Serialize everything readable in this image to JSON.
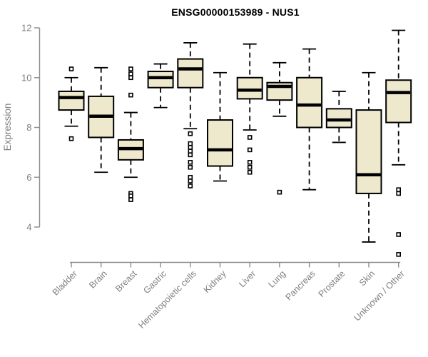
{
  "chart_data": {
    "type": "boxplot",
    "title": "ENSG00000153989 - NUS1",
    "xlabel": "",
    "ylabel": "Expression",
    "ylim": [
      4,
      12
    ],
    "yticks": [
      4,
      6,
      8,
      10,
      12
    ],
    "grid": false,
    "legend": "none",
    "categories": [
      "Bladder",
      "Brain",
      "Breast",
      "Gastric",
      "Hematopoietic cells",
      "Kidney",
      "Liver",
      "Lung",
      "Pancreas",
      "Prostate",
      "Skin",
      "Unknown / Other"
    ],
    "boxes": [
      {
        "category": "Bladder",
        "whisker_low": 8.05,
        "q1": 8.7,
        "median": 9.2,
        "q3": 9.45,
        "whisker_high": 10.0,
        "outliers": [
          10.35,
          7.55
        ]
      },
      {
        "category": "Brain",
        "whisker_low": 6.2,
        "q1": 7.6,
        "median": 8.45,
        "q3": 9.25,
        "whisker_high": 10.4,
        "outliers": []
      },
      {
        "category": "Breast",
        "whisker_low": 6.0,
        "q1": 6.7,
        "median": 7.15,
        "q3": 7.5,
        "whisker_high": 8.6,
        "outliers": [
          10.35,
          10.15,
          10.0,
          9.3,
          5.35,
          5.25,
          5.1
        ]
      },
      {
        "category": "Gastric",
        "whisker_low": 8.8,
        "q1": 9.6,
        "median": 10.0,
        "q3": 10.25,
        "whisker_high": 10.55,
        "outliers": []
      },
      {
        "category": "Hematopoietic cells",
        "whisker_low": 7.95,
        "q1": 9.6,
        "median": 10.35,
        "q3": 10.75,
        "whisker_high": 11.4,
        "outliers": [
          7.75,
          7.35,
          7.2,
          7.05,
          6.9,
          6.6,
          6.4,
          6.0,
          5.85,
          5.65
        ]
      },
      {
        "category": "Kidney",
        "whisker_low": 5.85,
        "q1": 6.45,
        "median": 7.1,
        "q3": 8.3,
        "whisker_high": 10.2,
        "outliers": []
      },
      {
        "category": "Liver",
        "whisker_low": 7.9,
        "q1": 9.15,
        "median": 9.5,
        "q3": 10.0,
        "whisker_high": 11.35,
        "outliers": [
          7.6,
          7.1,
          6.6,
          6.4,
          6.2
        ]
      },
      {
        "category": "Lung",
        "whisker_low": 8.45,
        "q1": 9.1,
        "median": 9.65,
        "q3": 9.8,
        "whisker_high": 10.6,
        "outliers": [
          5.4
        ]
      },
      {
        "category": "Pancreas",
        "whisker_low": 5.5,
        "q1": 8.0,
        "median": 8.9,
        "q3": 10.0,
        "whisker_high": 11.15,
        "outliers": []
      },
      {
        "category": "Prostate",
        "whisker_low": 7.4,
        "q1": 8.0,
        "median": 8.3,
        "q3": 8.75,
        "whisker_high": 9.45,
        "outliers": []
      },
      {
        "category": "Skin",
        "whisker_low": 3.4,
        "q1": 5.35,
        "median": 6.1,
        "q3": 8.7,
        "whisker_high": 10.2,
        "outliers": []
      },
      {
        "category": "Unknown / Other",
        "whisker_low": 6.5,
        "q1": 8.2,
        "median": 9.4,
        "q3": 9.9,
        "whisker_high": 11.9,
        "outliers": [
          5.5,
          5.35,
          3.7,
          2.9
        ]
      }
    ],
    "colors": {
      "box_fill": "#EEE8CD",
      "box_stroke": "#000000",
      "median": "#000000",
      "whisker": "#000000",
      "outlier_stroke": "#000000",
      "outlier_fill": "#FFFFFF",
      "axis": "#8C8C8C",
      "tick_text": "#7F7F7F",
      "title_text": "#000000",
      "background": "#FFFFFF"
    }
  }
}
